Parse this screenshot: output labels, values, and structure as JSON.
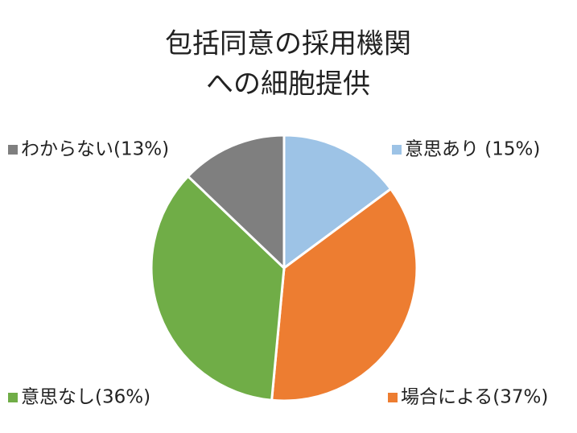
{
  "chart_data": {
    "type": "pie",
    "title": [
      "包括同意の採用機関",
      "への細胞提供"
    ],
    "categories": [
      "意思あり (15%)",
      "場合による(37%)",
      "意思なし(36%)",
      "わからない(13%)"
    ],
    "values": [
      15,
      37,
      36,
      13
    ],
    "colors": [
      "#9dc3e6",
      "#ed7d31",
      "#70ad47",
      "#7f7f7f"
    ]
  }
}
